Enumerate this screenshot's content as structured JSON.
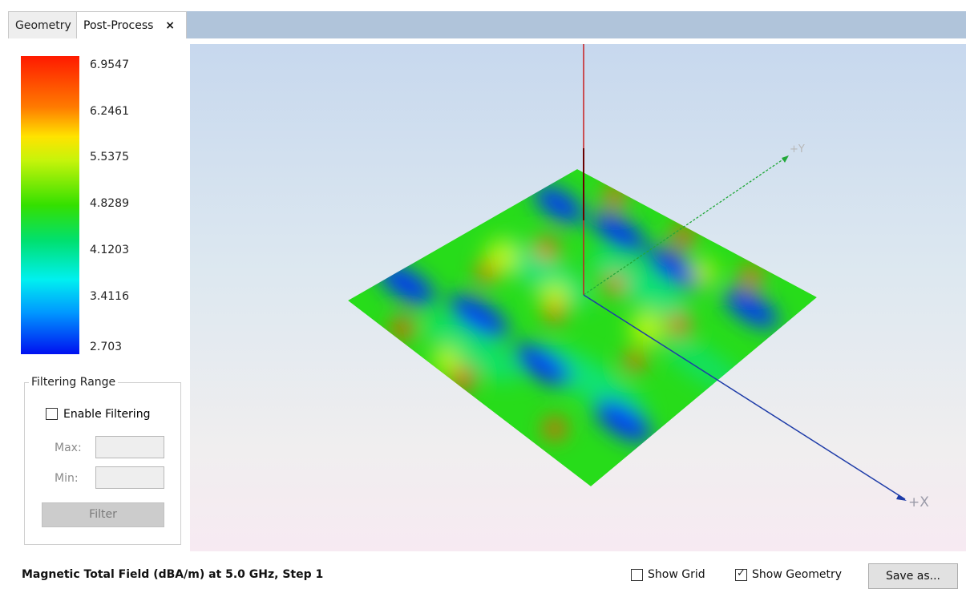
{
  "tabs": [
    {
      "label": "Geometry"
    },
    {
      "label": "Post-Process",
      "close": "×"
    }
  ],
  "legend": {
    "colors": [
      "#ff1a00",
      "#ff7a00",
      "#ffe300",
      "#c6f40a",
      "#34e000",
      "#00e070",
      "#00f0f0",
      "#0098ff",
      "#0010f0"
    ],
    "values": [
      "6.9547",
      "6.2461",
      "5.5375",
      "4.8289",
      "4.1203",
      "3.4116",
      "2.703"
    ]
  },
  "filtering": {
    "group_title": "Filtering Range",
    "enable_label": "Enable Filtering",
    "enable_checked": false,
    "max_label": "Max:",
    "max_value": "",
    "min_label": "Min:",
    "min_value": "",
    "filter_button": "Filter"
  },
  "viewport": {
    "axis_x_label": "+X",
    "axis_y_label": "+Y"
  },
  "footer": {
    "status": "Magnetic Total Field (dBA/m) at 5.0 GHz, Step 1",
    "show_grid_label": "Show Grid",
    "show_grid_checked": false,
    "show_geometry_label": "Show Geometry",
    "show_geometry_checked": true,
    "save_button": "Save as..."
  }
}
